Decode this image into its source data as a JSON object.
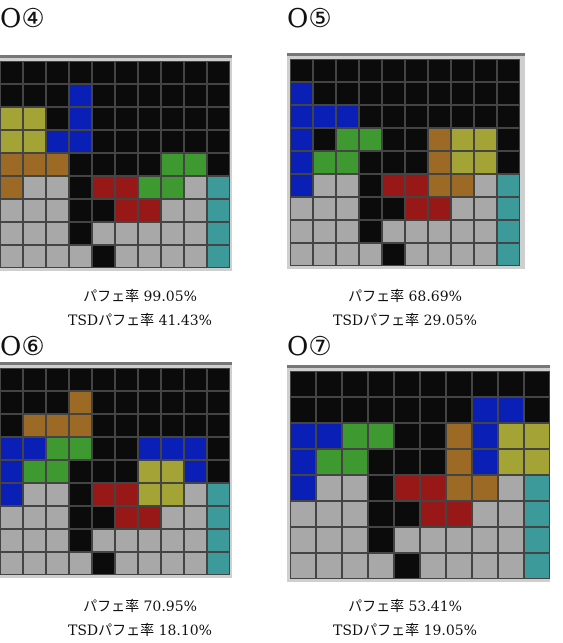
{
  "panels": [
    {
      "label": "O④",
      "line1": "パフェ率 99.05%",
      "line2": "TSDパフェ率 41.43%"
    },
    {
      "label": "O⑤",
      "line1": "パフェ率 68.69%",
      "line2": "TSDパフェ率 29.05%"
    },
    {
      "label": "O⑥",
      "line1": "パフェ率 70.95%",
      "line2": "TSDパフェ率 18.10%"
    },
    {
      "label": "O⑦",
      "line1": "パフェ率 53.41%",
      "line2": "TSDパフェ率 19.05%"
    }
  ]
}
